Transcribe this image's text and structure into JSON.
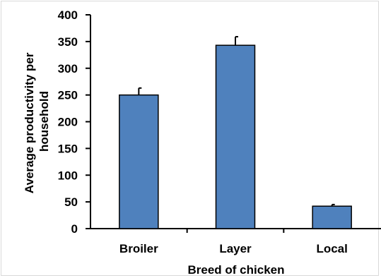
{
  "chart_data": {
    "type": "bar",
    "categories": [
      "Broiler",
      "Layer",
      "Local"
    ],
    "values": [
      250,
      343,
      42
    ],
    "error_bars": [
      13,
      16,
      3
    ],
    "xlabel": "Breed of chicken",
    "ylabel_lines": [
      "Average productivity per",
      "household"
    ],
    "ylim": [
      0,
      400
    ],
    "yticks": [
      "0",
      "50",
      "100",
      "150",
      "200",
      "250",
      "300",
      "350",
      "400"
    ],
    "bar_color": "#4f81bd",
    "bar_edge_color": "#000000",
    "grid": false,
    "legend": "none"
  }
}
